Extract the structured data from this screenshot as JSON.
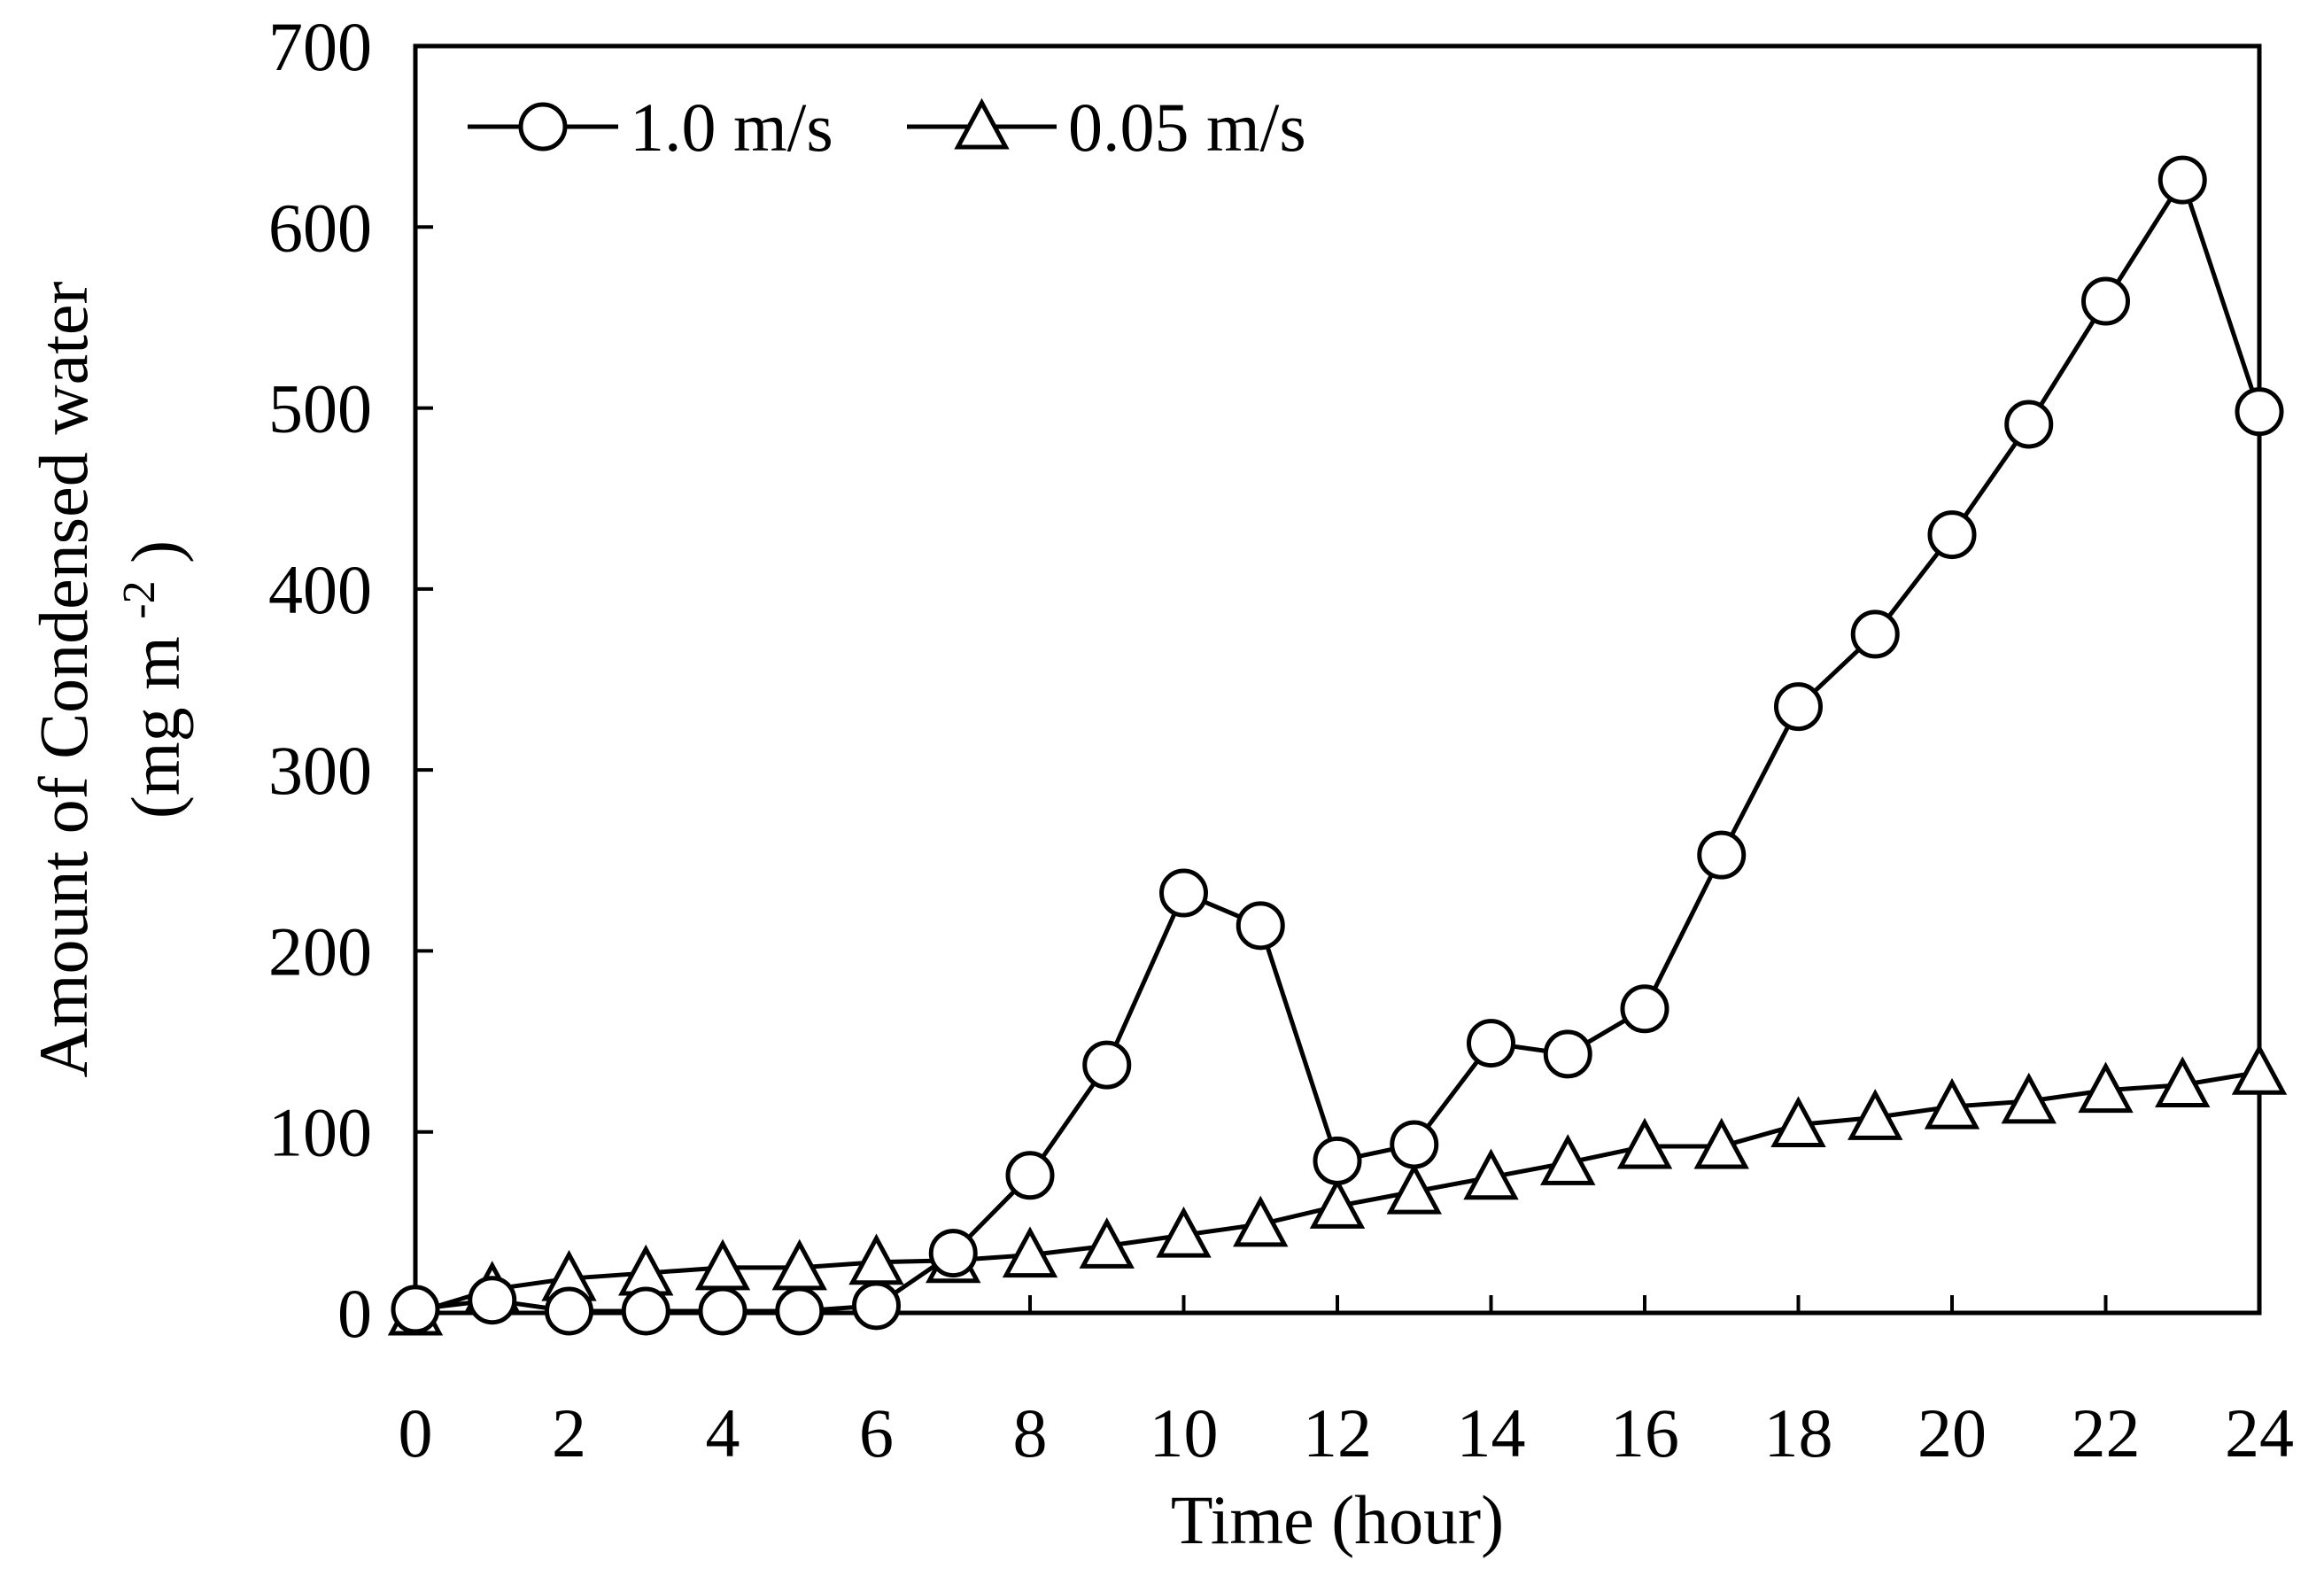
{
  "chart_data": {
    "type": "line",
    "title": "",
    "xlabel": "Time (hour)",
    "ylabel_line1": "Amount of Condensed water",
    "ylabel_line2_main": "(mg m",
    "ylabel_line2_sup": "-2",
    "ylabel_line2_end": ")",
    "xlim": [
      0,
      24
    ],
    "ylim": [
      0,
      700
    ],
    "x_ticks": [
      "0",
      "2",
      "4",
      "6",
      "8",
      "10",
      "12",
      "14",
      "16",
      "18",
      "20",
      "22",
      "24"
    ],
    "y_ticks": [
      "0",
      "100",
      "200",
      "300",
      "400",
      "500",
      "600",
      "700"
    ],
    "grid": false,
    "legend_position": "top-left",
    "colors": {
      "line": "#000000",
      "marker_fill": "#ffffff",
      "background": "#ffffff"
    },
    "series": [
      {
        "name": "1.0 m/s",
        "marker": "circle",
        "x": [
          0,
          1,
          2,
          3,
          4,
          5,
          6,
          7,
          8,
          9,
          10,
          11,
          12,
          13,
          14,
          15,
          16,
          17,
          18,
          19,
          20,
          21,
          22,
          23,
          24
        ],
        "values": [
          2,
          7,
          1,
          1,
          1,
          1,
          4,
          33,
          76,
          137,
          232,
          214,
          84,
          93,
          149,
          143,
          168,
          253,
          335,
          375,
          430,
          491,
          559,
          626,
          498
        ]
      },
      {
        "name": "0.05 m/s",
        "marker": "triangle",
        "x": [
          0,
          1,
          2,
          3,
          4,
          5,
          6,
          7,
          8,
          9,
          10,
          11,
          12,
          13,
          14,
          15,
          16,
          17,
          18,
          19,
          20,
          21,
          22,
          23,
          24
        ],
        "values": [
          0,
          13,
          19,
          22,
          25,
          25,
          28,
          29,
          32,
          37,
          43,
          49,
          59,
          67,
          75,
          83,
          92,
          92,
          104,
          108,
          114,
          117,
          123,
          126,
          133
        ]
      }
    ]
  }
}
